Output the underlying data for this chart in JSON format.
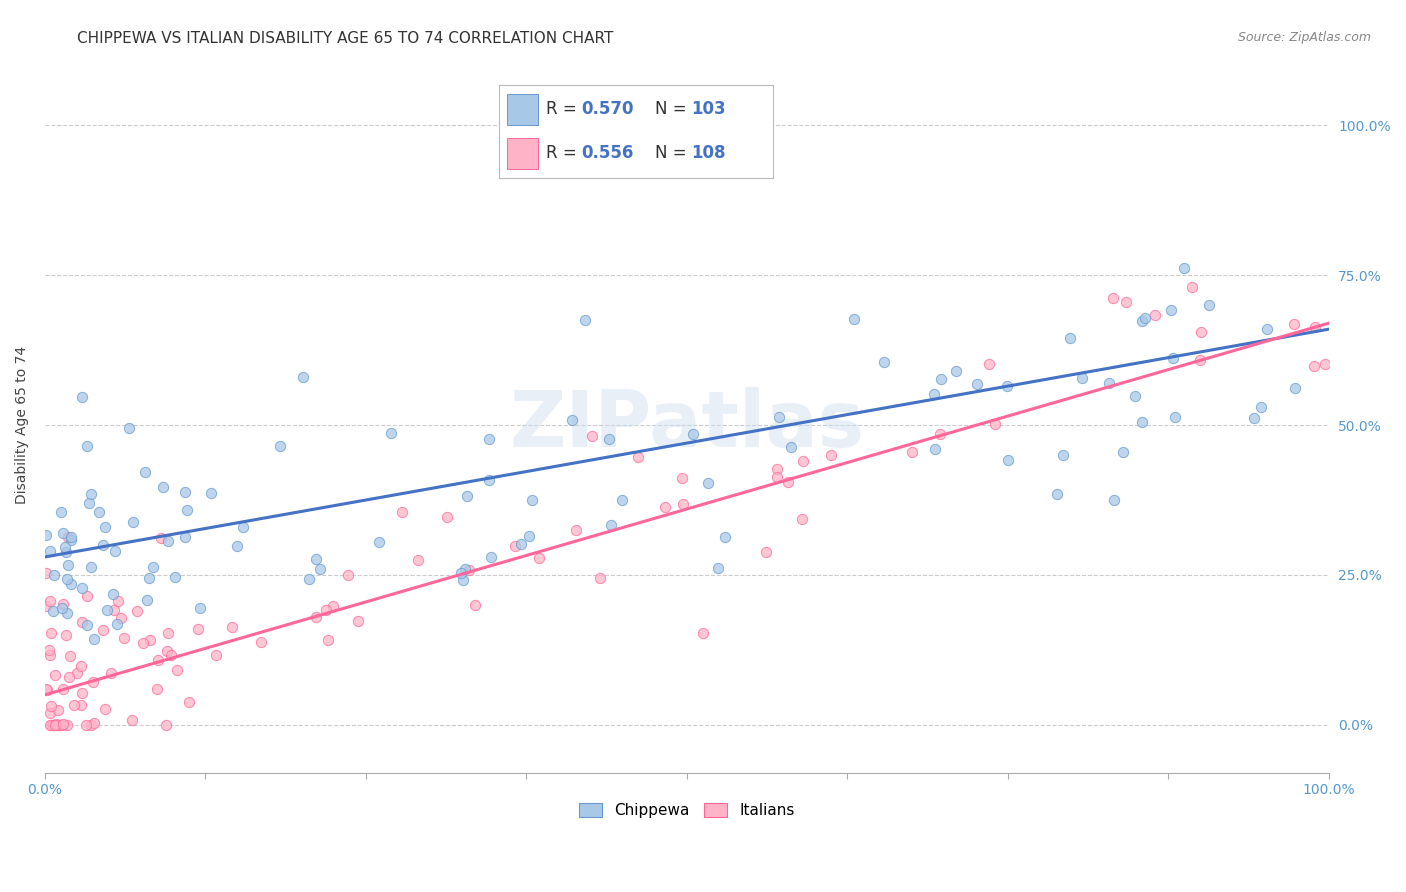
{
  "title": "CHIPPEWA VS ITALIAN DISABILITY AGE 65 TO 74 CORRELATION CHART",
  "source": "Source: ZipAtlas.com",
  "ylabel": "Disability Age 65 to 74",
  "chippewa_color": "#A8C8E8",
  "italian_color": "#FFB3C6",
  "chippewa_line_color": "#4472C4",
  "italian_line_color": "#FF6699",
  "chippewa_R": 0.57,
  "chippewa_N": 103,
  "italian_R": 0.556,
  "italian_N": 108,
  "background_color": "#FFFFFF",
  "grid_color": "#CCCCCC",
  "watermark": "ZIPatlas",
  "chip_intercept": 0.28,
  "chip_slope": 0.38,
  "ital_intercept": 0.05,
  "ital_slope": 0.62,
  "ylim_min": -0.08,
  "ylim_max": 1.08
}
